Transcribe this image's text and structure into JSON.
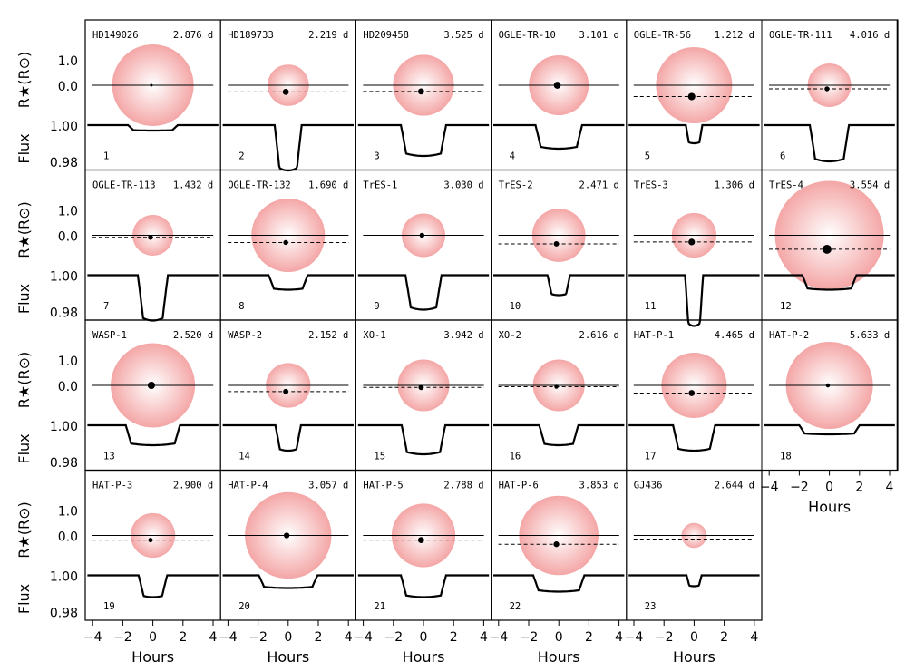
{
  "chart_data": {
    "type": "line",
    "y_axis": {
      "radius_label": "R★(R⊙)",
      "radius_ticks": [
        "1.0",
        "0.0"
      ],
      "flux_label": "Flux",
      "flux_ticks": [
        "1.00",
        "0.98"
      ]
    },
    "x_axis": {
      "label": "Hours",
      "ticks": [
        "−4",
        "−2",
        "0",
        "2",
        "4"
      ],
      "range": [
        -4.5,
        4.5
      ]
    },
    "panels": [
      {
        "index": "1",
        "name": "HD149026",
        "period": "2.876 d",
        "star_radius": 1.5,
        "planet_offset": 0.0,
        "planet_radius": 0.05,
        "depth": 0.003,
        "duration": 3.3
      },
      {
        "index": "2",
        "name": "HD189733",
        "period": "2.219 d",
        "star_radius": 0.76,
        "planet_offset": -0.65,
        "planet_radius": 0.15,
        "depth": 0.025,
        "duration": 1.8
      },
      {
        "index": "3",
        "name": "HD209458",
        "period": "3.525 d",
        "star_radius": 1.12,
        "planet_offset": -0.6,
        "planet_radius": 0.15,
        "depth": 0.017,
        "duration": 3.0
      },
      {
        "index": "4",
        "name": "OGLE-TR-10",
        "period": "3.101 d",
        "star_radius": 1.1,
        "planet_offset": 0.0,
        "planet_radius": 0.17,
        "depth": 0.013,
        "duration": 3.1
      },
      {
        "index": "5",
        "name": "OGLE-TR-56",
        "period": "1.212 d",
        "star_radius": 1.4,
        "planet_offset": -1.1,
        "planet_radius": 0.18,
        "depth": 0.01,
        "duration": 1.1
      },
      {
        "index": "6",
        "name": "OGLE-TR-111",
        "period": "4.016 d",
        "star_radius": 0.8,
        "planet_offset": -0.35,
        "planet_radius": 0.12,
        "depth": 0.02,
        "duration": 2.6
      },
      {
        "index": "7",
        "name": "OGLE-TR-113",
        "period": "1.432 d",
        "star_radius": 0.75,
        "planet_offset": -0.2,
        "planet_radius": 0.12,
        "depth": 0.025,
        "duration": 2.0
      },
      {
        "index": "8",
        "name": "OGLE-TR-132",
        "period": "1.690 d",
        "star_radius": 1.35,
        "planet_offset": -0.7,
        "planet_radius": 0.12,
        "depth": 0.008,
        "duration": 2.6
      },
      {
        "index": "9",
        "name": "TrES-1",
        "period": "3.030 d",
        "star_radius": 0.8,
        "planet_offset": 0.0,
        "planet_radius": 0.12,
        "depth": 0.019,
        "duration": 2.4
      },
      {
        "index": "10",
        "name": "TrES-2",
        "period": "2.471 d",
        "star_radius": 0.98,
        "planet_offset": -0.83,
        "planet_radius": 0.13,
        "depth": 0.011,
        "duration": 1.5
      },
      {
        "index": "11",
        "name": "TrES-3",
        "period": "1.306 d",
        "star_radius": 0.82,
        "planet_offset": -0.65,
        "planet_radius": 0.16,
        "depth": 0.028,
        "duration": 1.2
      },
      {
        "index": "12",
        "name": "TrES-4",
        "period": "3.554 d",
        "star_radius": 2.0,
        "planet_offset": -1.35,
        "planet_radius": 0.22,
        "depth": 0.008,
        "duration": 3.6
      },
      {
        "index": "13",
        "name": "WASP-1",
        "period": "2.520 d",
        "star_radius": 1.55,
        "planet_offset": 0.0,
        "planet_radius": 0.18,
        "depth": 0.011,
        "duration": 3.6
      },
      {
        "index": "14",
        "name": "WASP-2",
        "period": "2.152 d",
        "star_radius": 0.82,
        "planet_offset": -0.6,
        "planet_radius": 0.13,
        "depth": 0.014,
        "duration": 1.7
      },
      {
        "index": "15",
        "name": "XO-1",
        "period": "3.942 d",
        "star_radius": 0.95,
        "planet_offset": -0.2,
        "planet_radius": 0.13,
        "depth": 0.016,
        "duration": 2.9
      },
      {
        "index": "16",
        "name": "XO-2",
        "period": "2.616 d",
        "star_radius": 0.95,
        "planet_offset": -0.13,
        "planet_radius": 0.1,
        "depth": 0.011,
        "duration": 2.6
      },
      {
        "index": "17",
        "name": "HAT-P-1",
        "period": "4.465 d",
        "star_radius": 1.2,
        "planet_offset": -0.75,
        "planet_radius": 0.15,
        "depth": 0.014,
        "duration": 2.8
      },
      {
        "index": "18",
        "name": "HAT-P-2",
        "period": "5.633 d",
        "star_radius": 1.6,
        "planet_offset": 0.0,
        "planet_radius": 0.1,
        "depth": 0.005,
        "duration": 4.0
      },
      {
        "index": "19",
        "name": "HAT-P-3",
        "period": "2.900 d",
        "star_radius": 0.82,
        "planet_offset": -0.45,
        "planet_radius": 0.11,
        "depth": 0.012,
        "duration": 1.9
      },
      {
        "index": "20",
        "name": "HAT-P-4",
        "period": "3.057 d",
        "star_radius": 1.59,
        "planet_offset": 0.0,
        "planet_radius": 0.14,
        "depth": 0.007,
        "duration": 3.9
      },
      {
        "index": "21",
        "name": "HAT-P-5",
        "period": "2.788 d",
        "star_radius": 1.17,
        "planet_offset": -0.45,
        "planet_radius": 0.15,
        "depth": 0.012,
        "duration": 3.0
      },
      {
        "index": "22",
        "name": "HAT-P-6",
        "period": "3.853 d",
        "star_radius": 1.46,
        "planet_offset": -0.85,
        "planet_radius": 0.14,
        "depth": 0.009,
        "duration": 3.4
      },
      {
        "index": "23",
        "name": "GJ436",
        "period": "2.644 d",
        "star_radius": 0.46,
        "planet_offset": -0.35,
        "planet_radius": 0.0,
        "depth": 0.006,
        "duration": 1.0
      }
    ]
  },
  "colors": {
    "star_center": "#ffffff",
    "star_edge": "#f4a6a6",
    "line": "#000000"
  }
}
